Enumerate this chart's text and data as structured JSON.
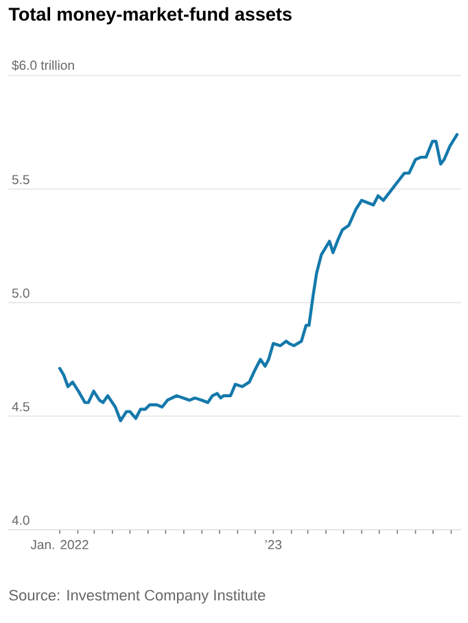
{
  "chart_data": {
    "type": "line",
    "title": "Total money-market-fund assets",
    "x": [
      "2022-01-01",
      "2022-01-08",
      "2022-01-15",
      "2022-01-23",
      "2022-02-02",
      "2022-02-13",
      "2022-02-19",
      "2022-02-28",
      "2022-03-10",
      "2022-03-16",
      "2022-03-24",
      "2022-04-06",
      "2022-04-15",
      "2022-04-25",
      "2022-05-01",
      "2022-05-11",
      "2022-05-19",
      "2022-05-27",
      "2022-06-04",
      "2022-06-16",
      "2022-06-25",
      "2022-07-04",
      "2022-07-20",
      "2022-07-31",
      "2022-08-11",
      "2022-08-20",
      "2022-09-01",
      "2022-09-11",
      "2022-09-19",
      "2022-09-27",
      "2022-10-03",
      "2022-10-08",
      "2022-10-20",
      "2022-10-28",
      "2022-11-09",
      "2022-11-21",
      "2022-11-30",
      "2022-12-10",
      "2022-12-18",
      "2022-12-24",
      "2023-01-01",
      "2023-01-13",
      "2023-01-23",
      "2023-01-28",
      "2023-02-05",
      "2023-02-18",
      "2023-02-26",
      "2023-03-03",
      "2023-03-10",
      "2023-03-16",
      "2023-03-24",
      "2023-04-07",
      "2023-04-13",
      "2023-04-22",
      "2023-04-29",
      "2023-05-10",
      "2023-05-22",
      "2023-06-01",
      "2023-06-11",
      "2023-06-21",
      "2023-06-29",
      "2023-07-08",
      "2023-07-20",
      "2023-07-29",
      "2023-08-04",
      "2023-08-13",
      "2023-08-21",
      "2023-09-01",
      "2023-09-10",
      "2023-09-19",
      "2023-09-30",
      "2023-10-06",
      "2023-10-14",
      "2023-10-20",
      "2023-10-30",
      "2023-11-11"
    ],
    "series": [
      {
        "color": "#1479ab",
        "values": [
          4.71,
          4.68,
          4.63,
          4.65,
          4.61,
          4.56,
          4.56,
          4.61,
          4.57,
          4.56,
          4.59,
          4.54,
          4.48,
          4.52,
          4.52,
          4.49,
          4.53,
          4.53,
          4.55,
          4.55,
          4.54,
          4.57,
          4.59,
          4.58,
          4.57,
          4.58,
          4.57,
          4.56,
          4.59,
          4.6,
          4.58,
          4.59,
          4.59,
          4.64,
          4.63,
          4.65,
          4.7,
          4.75,
          4.72,
          4.75,
          4.82,
          4.81,
          4.83,
          4.82,
          4.81,
          4.83,
          4.9,
          4.9,
          5.03,
          5.13,
          5.21,
          5.27,
          5.22,
          5.28,
          5.32,
          5.34,
          5.41,
          5.45,
          5.44,
          5.43,
          5.47,
          5.45,
          5.49,
          5.52,
          5.54,
          5.57,
          5.57,
          5.63,
          5.64,
          5.64,
          5.71,
          5.71,
          5.61,
          5.63,
          5.69,
          5.74
        ]
      }
    ],
    "xlim": [
      "2021-10-05",
      "2023-11-18"
    ],
    "xticks": [
      {
        "value": "2022-01",
        "label": "Jan. 2022"
      },
      {
        "value": "2022-02",
        "label": null
      },
      {
        "value": "2022-03",
        "label": null
      },
      {
        "value": "2022-04",
        "label": null
      },
      {
        "value": "2022-05",
        "label": null
      },
      {
        "value": "2022-06",
        "label": null
      },
      {
        "value": "2022-07",
        "label": null
      },
      {
        "value": "2022-08",
        "label": null
      },
      {
        "value": "2022-09",
        "label": null
      },
      {
        "value": "2022-10",
        "label": null
      },
      {
        "value": "2022-11",
        "label": null
      },
      {
        "value": "2022-12",
        "label": null
      },
      {
        "value": "2023-01",
        "label": "’23"
      },
      {
        "value": "2023-02",
        "label": null
      },
      {
        "value": "2023-03",
        "label": null
      },
      {
        "value": "2023-04",
        "label": null
      },
      {
        "value": "2023-05",
        "label": null
      },
      {
        "value": "2023-06",
        "label": null
      },
      {
        "value": "2023-07",
        "label": null
      },
      {
        "value": "2023-08",
        "label": null
      },
      {
        "value": "2023-09",
        "label": null
      },
      {
        "value": "2023-10",
        "label": null
      },
      {
        "value": "2023-11",
        "label": null
      }
    ],
    "ylim": [
      4.0,
      6.0
    ],
    "yticks": [
      {
        "value": 4.0,
        "label": "4.0"
      },
      {
        "value": 4.5,
        "label": "4.5"
      },
      {
        "value": 5.0,
        "label": "5.0"
      },
      {
        "value": 5.5,
        "label": "5.5"
      },
      {
        "value": 6.0,
        "label": "$6.0 trillion"
      }
    ],
    "grid": "y",
    "annotations": [
      "Source: Investment Company Institute"
    ]
  }
}
